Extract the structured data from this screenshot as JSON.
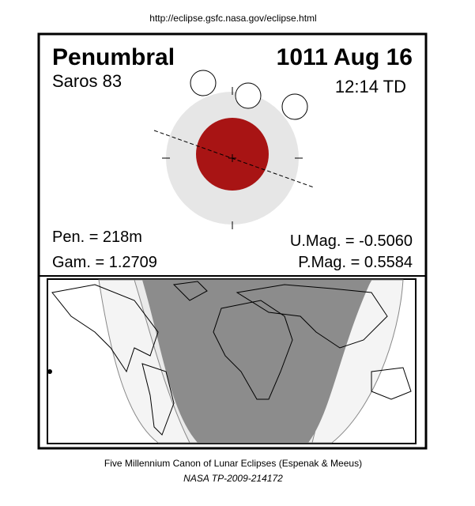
{
  "header": {
    "url": "http://eclipse.gsfc.nasa.gov/eclipse.html"
  },
  "eclipse": {
    "type": "Penumbral",
    "date": "1011 Aug 16",
    "saros": "Saros  83",
    "time": "12:14 TD",
    "pen": "Pen. = 218m",
    "gam": "Gam. = 1.2709",
    "umag": "U.Mag. = -0.5060",
    "pmag": "P.Mag. = 0.5584"
  },
  "footer": {
    "title": "Five Millennium Canon of Lunar Eclipses (Espenak & Meeus)",
    "reference": "NASA TP-2009-214172"
  }
}
